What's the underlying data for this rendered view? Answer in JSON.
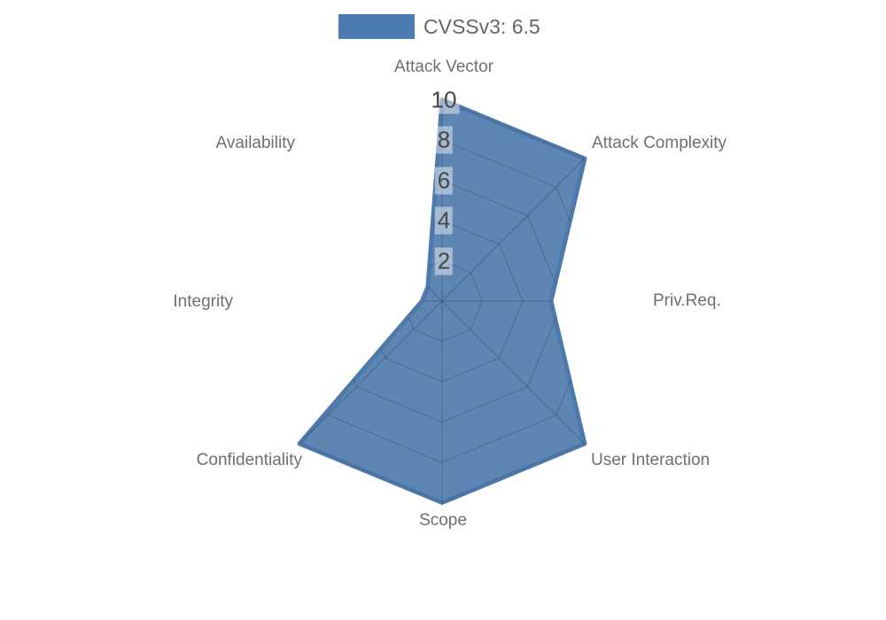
{
  "chart_data": {
    "type": "radar",
    "legend": {
      "label": "CVSSv3: 6.5",
      "position": "top"
    },
    "axes": [
      {
        "label": "Attack Vector",
        "value": 10
      },
      {
        "label": "Attack Complexity",
        "value": 10
      },
      {
        "label": "Priv.Req.",
        "value": 5.4
      },
      {
        "label": "User Interaction",
        "value": 10
      },
      {
        "label": "Scope",
        "value": 10
      },
      {
        "label": "Confidentiality",
        "value": 10
      },
      {
        "label": "Integrity",
        "value": 1
      },
      {
        "label": "Availability",
        "value": 1
      }
    ],
    "scale": {
      "min": 0,
      "max": 10,
      "step": 2
    },
    "ticks": [
      {
        "label": "2",
        "value": 2
      },
      {
        "label": "4",
        "value": 4
      },
      {
        "label": "6",
        "value": 6
      },
      {
        "label": "8",
        "value": 8
      },
      {
        "label": "10",
        "value": 10
      }
    ],
    "grid": {
      "visible_inside_series_only": true,
      "rings": 5,
      "spokes": 8
    },
    "colors": {
      "series_fill": "#5e86b2",
      "series_border": "#4d7aab",
      "legend_swatch": "#4e7bae",
      "grid_line": "rgba(25,40,60,0.25)",
      "axis_label_text": "#6f6f6f",
      "tick_text": "#464646",
      "legend_text": "#666666",
      "background": "#ffffff"
    }
  }
}
